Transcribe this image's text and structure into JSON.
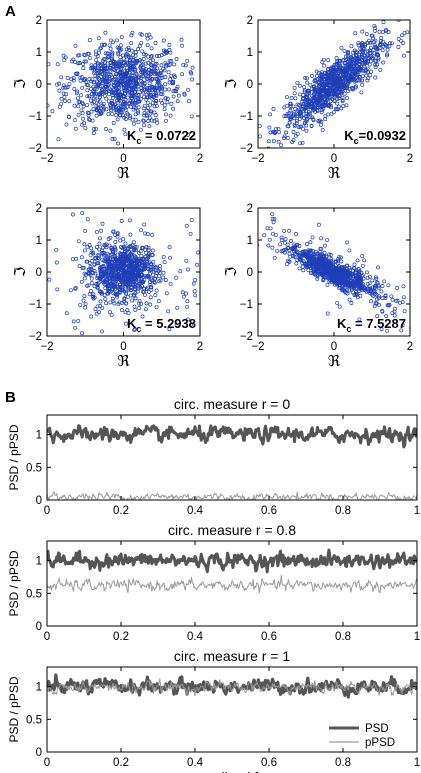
{
  "panel_labels": [
    "A",
    "B"
  ],
  "colors": {
    "scatter": "#1f3fb8",
    "psd": "#555555",
    "ppsd": "#9a9a9a",
    "axes": "#000000"
  },
  "chart_data": [
    {
      "type": "scatter",
      "xlabel": "ℜ",
      "ylabel": "ℑ",
      "xlim": [
        -2,
        2
      ],
      "ylim": [
        -2,
        2
      ],
      "xticks": [
        -2,
        0,
        2
      ],
      "yticks": [
        -2,
        -1,
        0,
        1,
        2
      ],
      "annotation": {
        "base": "K",
        "sub": "c",
        "text": " = 0.0722"
      },
      "distribution": {
        "n": 900,
        "mean": [
          0,
          0
        ],
        "sd_x": 0.75,
        "sd_y": 0.65,
        "correlation": 0.05
      }
    },
    {
      "type": "scatter",
      "xlabel": "ℜ",
      "ylabel": "ℑ",
      "xlim": [
        -2,
        2
      ],
      "ylim": [
        -2,
        2
      ],
      "xticks": [
        -2,
        0,
        2
      ],
      "yticks": [
        -2,
        -1,
        0,
        1,
        2
      ],
      "annotation": {
        "base": "K",
        "sub": "c",
        "text": "=0.0932"
      },
      "distribution": {
        "n": 900,
        "mean": [
          0,
          0
        ],
        "sd_x": 0.65,
        "sd_y": 0.7,
        "correlation": 0.85
      }
    },
    {
      "type": "scatter",
      "xlabel": "ℜ",
      "ylabel": "ℑ",
      "xlim": [
        -2,
        2
      ],
      "ylim": [
        -2,
        2
      ],
      "xticks": [
        -2,
        0,
        2
      ],
      "yticks": [
        -2,
        -1,
        0,
        1,
        2
      ],
      "annotation": {
        "base": "K",
        "sub": "c",
        "text": " = 5.2938"
      },
      "distribution": {
        "n": 900,
        "mean": [
          0,
          0
        ],
        "sd_x": 0.45,
        "sd_y": 0.45,
        "correlation": 0.0,
        "heavy_tails": true
      }
    },
    {
      "type": "scatter",
      "xlabel": "ℜ",
      "ylabel": "ℑ",
      "xlim": [
        -2,
        2
      ],
      "ylim": [
        -2,
        2
      ],
      "xticks": [
        -2,
        0,
        2
      ],
      "yticks": [
        -2,
        -1,
        0,
        1,
        2
      ],
      "annotation": {
        "base": "K",
        "sub": "c",
        "text": " = 7.5287"
      },
      "distribution": {
        "n": 900,
        "mean": [
          0,
          0
        ],
        "sd_x": 0.5,
        "sd_y": 0.35,
        "correlation": -0.85,
        "heavy_tails": true
      }
    },
    {
      "type": "line",
      "title": "circ. measure r = 0",
      "ylabel": "PSD / pPSD",
      "xlim": [
        0,
        1
      ],
      "ylim": [
        0,
        1.3
      ],
      "xticks": [
        0,
        0.2,
        0.4,
        0.6,
        0.8,
        1
      ],
      "xtick_labels": [
        "0",
        "0.2",
        "0.4",
        "0.6",
        "0.8",
        "1"
      ],
      "yticks": [
        0,
        0.5,
        1
      ],
      "ytick_labels": [
        "0",
        "0.5",
        "1"
      ],
      "series": [
        {
          "level": 1.0,
          "noise": 0.05
        },
        {
          "level": 0.05,
          "noise": 0.03
        }
      ]
    },
    {
      "type": "line",
      "title": "circ. measure r = 0.8",
      "ylabel": "PSD / pPSD",
      "xlim": [
        0,
        1
      ],
      "ylim": [
        0,
        1.3
      ],
      "xticks": [
        0,
        0.2,
        0.4,
        0.6,
        0.8,
        1
      ],
      "xtick_labels": [
        "0",
        "0.2",
        "0.4",
        "0.6",
        "0.8",
        "1"
      ],
      "yticks": [
        0,
        0.5,
        1
      ],
      "ytick_labels": [
        "0",
        "0.5",
        "1"
      ],
      "series": [
        {
          "level": 1.0,
          "noise": 0.05
        },
        {
          "level": 0.62,
          "noise": 0.04
        }
      ]
    },
    {
      "type": "line",
      "title": "circ. measure r = 1",
      "ylabel": "PSD / pPSD",
      "xlabel": "normalised freq.",
      "xlim": [
        0,
        1
      ],
      "ylim": [
        0,
        1.3
      ],
      "xticks": [
        0,
        0.2,
        0.4,
        0.6,
        0.8,
        1
      ],
      "xtick_labels": [
        "0",
        "0.2",
        "0.4",
        "0.6",
        "0.8",
        "1"
      ],
      "yticks": [
        0,
        0.5,
        1
      ],
      "ytick_labels": [
        "0",
        "0.5",
        "1"
      ],
      "series": [
        {
          "name": "PSD",
          "level": 1.0,
          "noise": 0.05
        },
        {
          "name": "pPSD",
          "level": 0.99,
          "noise": 0.04
        }
      ],
      "legend_position": "bottom-right"
    }
  ]
}
